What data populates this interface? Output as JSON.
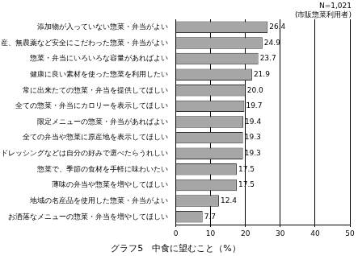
{
  "chart_data": {
    "type": "bar",
    "orientation": "horizontal",
    "title": "グラフ5　中食に望むこと（%）",
    "annotations": [
      "N=1,021",
      "(市販惣菜利用者)"
    ],
    "categories": [
      "添加物が入っていない惣菜・弁当がよい",
      "国産、無農薬など安全にこだわった惣菜・弁当がよい",
      "惣菜・弁当にいろいろな容量があればよい",
      "健康に良い素材を使った惣菜を利用したい",
      "常に出来たての惣菜・弁当を提供してほしい",
      "全ての惣菜・弁当にカロリーを表示してほしい",
      "限定メニューの惣菜・弁当があればよい",
      "全ての弁当や惣菜に原産地を表示してほしい",
      "ドレッシングなどは自分の好みで選べたらうれしい",
      "惣菜で、季節の食材を手軽に味わいたい",
      "薄味の弁当や惣菜を増やしてほしい",
      "地域の名産品を使用した惣菜・弁当がよい",
      "お洒落なメニューの惣菜・弁当を増やしてほしい"
    ],
    "values": [
      26.4,
      24.9,
      23.7,
      21.9,
      20.0,
      19.7,
      19.4,
      19.3,
      19.3,
      17.5,
      17.5,
      12.4,
      7.7
    ],
    "value_labels": [
      "26.4",
      "24.9",
      "23.7",
      "21.9",
      "20.0",
      "19.7",
      "19.4",
      "19.3",
      "19.3",
      "17.5",
      "17.5",
      "12.4",
      "7.7"
    ],
    "data_labels": true,
    "color": "#a6a6a6",
    "xlim": [
      0,
      50
    ],
    "xticks": [
      0,
      10,
      20,
      30,
      40,
      50
    ],
    "grid": true
  }
}
